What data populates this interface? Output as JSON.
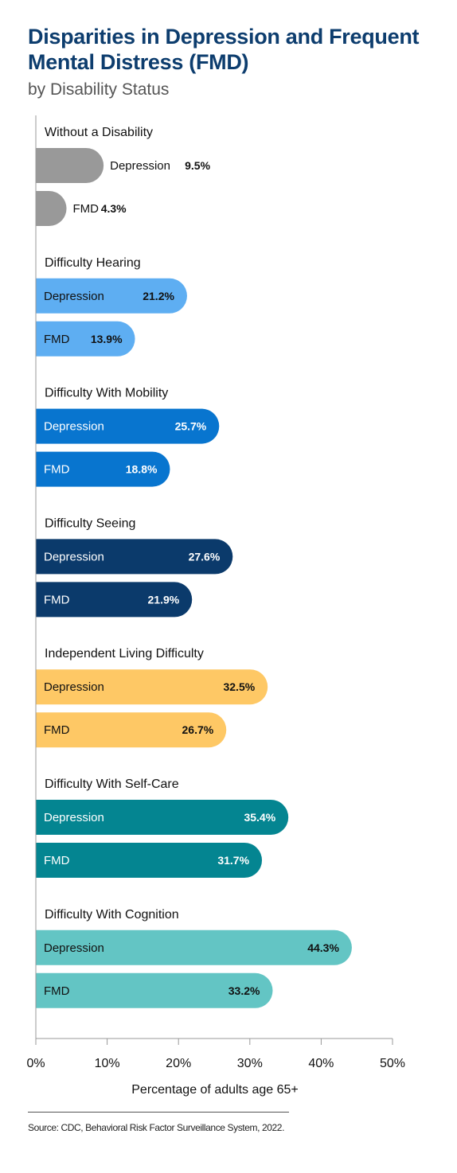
{
  "title": "Disparities in Depression and Frequent Mental Distress (FMD)",
  "subtitle": "by Disability Status",
  "source": "Source: CDC, Behavioral Risk Factor Surveillance System, 2022.",
  "chart_data": {
    "type": "bar",
    "orientation": "horizontal",
    "xlabel": "Percentage of adults age 65+",
    "xlim": [
      0,
      50
    ],
    "xticks": [
      "0%",
      "10%",
      "20%",
      "30%",
      "40%",
      "50%"
    ],
    "groups": [
      {
        "name": "Without a Disability",
        "color": "#999999",
        "text_color": "#111111",
        "bars": [
          {
            "label": "Depression",
            "value": 9.5,
            "value_label": "9.5%"
          },
          {
            "label": "FMD",
            "value": 4.3,
            "value_label": "4.3%"
          }
        ]
      },
      {
        "name": "Difficulty Hearing",
        "color": "#5eaef2",
        "text_color": "#111111",
        "bars": [
          {
            "label": "Depression",
            "value": 21.2,
            "value_label": "21.2%"
          },
          {
            "label": "FMD",
            "value": 13.9,
            "value_label": "13.9%"
          }
        ]
      },
      {
        "name": "Difficulty With Mobility",
        "color": "#0875cf",
        "text_color": "#ffffff",
        "bars": [
          {
            "label": "Depression",
            "value": 25.7,
            "value_label": "25.7%"
          },
          {
            "label": "FMD",
            "value": 18.8,
            "value_label": "18.8%"
          }
        ]
      },
      {
        "name": "Difficulty Seeing",
        "color": "#0b3a6b",
        "text_color": "#ffffff",
        "bars": [
          {
            "label": "Depression",
            "value": 27.6,
            "value_label": "27.6%"
          },
          {
            "label": "FMD",
            "value": 21.9,
            "value_label": "21.9%"
          }
        ]
      },
      {
        "name": "Independent Living Difficulty",
        "color": "#fec865",
        "text_color": "#111111",
        "bars": [
          {
            "label": "Depression",
            "value": 32.5,
            "value_label": "32.5%"
          },
          {
            "label": "FMD",
            "value": 26.7,
            "value_label": "26.7%"
          }
        ]
      },
      {
        "name": "Difficulty With Self-Care",
        "color": "#048591",
        "text_color": "#ffffff",
        "bars": [
          {
            "label": "Depression",
            "value": 35.4,
            "value_label": "35.4%"
          },
          {
            "label": "FMD",
            "value": 31.7,
            "value_label": "31.7%"
          }
        ]
      },
      {
        "name": "Difficulty With Cognition",
        "color": "#63c5c4",
        "text_color": "#111111",
        "bars": [
          {
            "label": "Depression",
            "value": 44.3,
            "value_label": "44.3%"
          },
          {
            "label": "FMD",
            "value": 33.2,
            "value_label": "33.2%"
          }
        ]
      }
    ]
  }
}
